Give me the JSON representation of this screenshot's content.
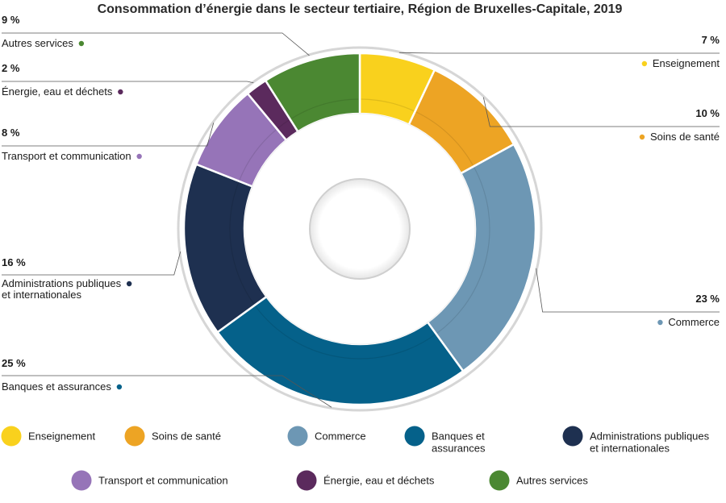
{
  "chart_data": {
    "type": "pie",
    "title": "Consommation d’énergie dans le secteur tertiaire, Région de Bruxelles-Capitale, 2019",
    "categories": [
      "Enseignement",
      "Soins de santé",
      "Commerce",
      "Banques et assurances",
      "Administrations publiques et internationales",
      "Transport et communication",
      "Énergie, eau et déchets",
      "Autres services"
    ],
    "values": [
      7,
      10,
      23,
      25,
      16,
      8,
      2,
      9
    ],
    "value_labels": [
      "7 %",
      "10 %",
      "23 %",
      "25 %",
      "16 %",
      "8 %",
      "2 %",
      "9 %"
    ],
    "callout_labels": [
      [
        "Enseignement"
      ],
      [
        "Soins de santé"
      ],
      [
        "Commerce"
      ],
      [
        "Banques et assurances"
      ],
      [
        "Administrations publiques",
        "et internationales"
      ],
      [
        "Transport et communication"
      ],
      [
        "Énergie, eau et déchets"
      ],
      [
        "Autres services"
      ]
    ],
    "legend_labels": [
      [
        "Enseignement"
      ],
      [
        "Soins de santé"
      ],
      [
        "Commerce"
      ],
      [
        "Banques et",
        "assurances"
      ],
      [
        "Administrations publiques",
        "et internationales"
      ],
      [
        "Transport et communication"
      ],
      [
        "Énergie, eau et déchets"
      ],
      [
        "Autres services"
      ]
    ],
    "colors": [
      "#f9d11d",
      "#eda424",
      "#6d97b4",
      "#05618a",
      "#1e3050",
      "#9674b8",
      "#5b2a5d",
      "#4b8832"
    ],
    "legend_placement": "bottom",
    "grid": false
  }
}
